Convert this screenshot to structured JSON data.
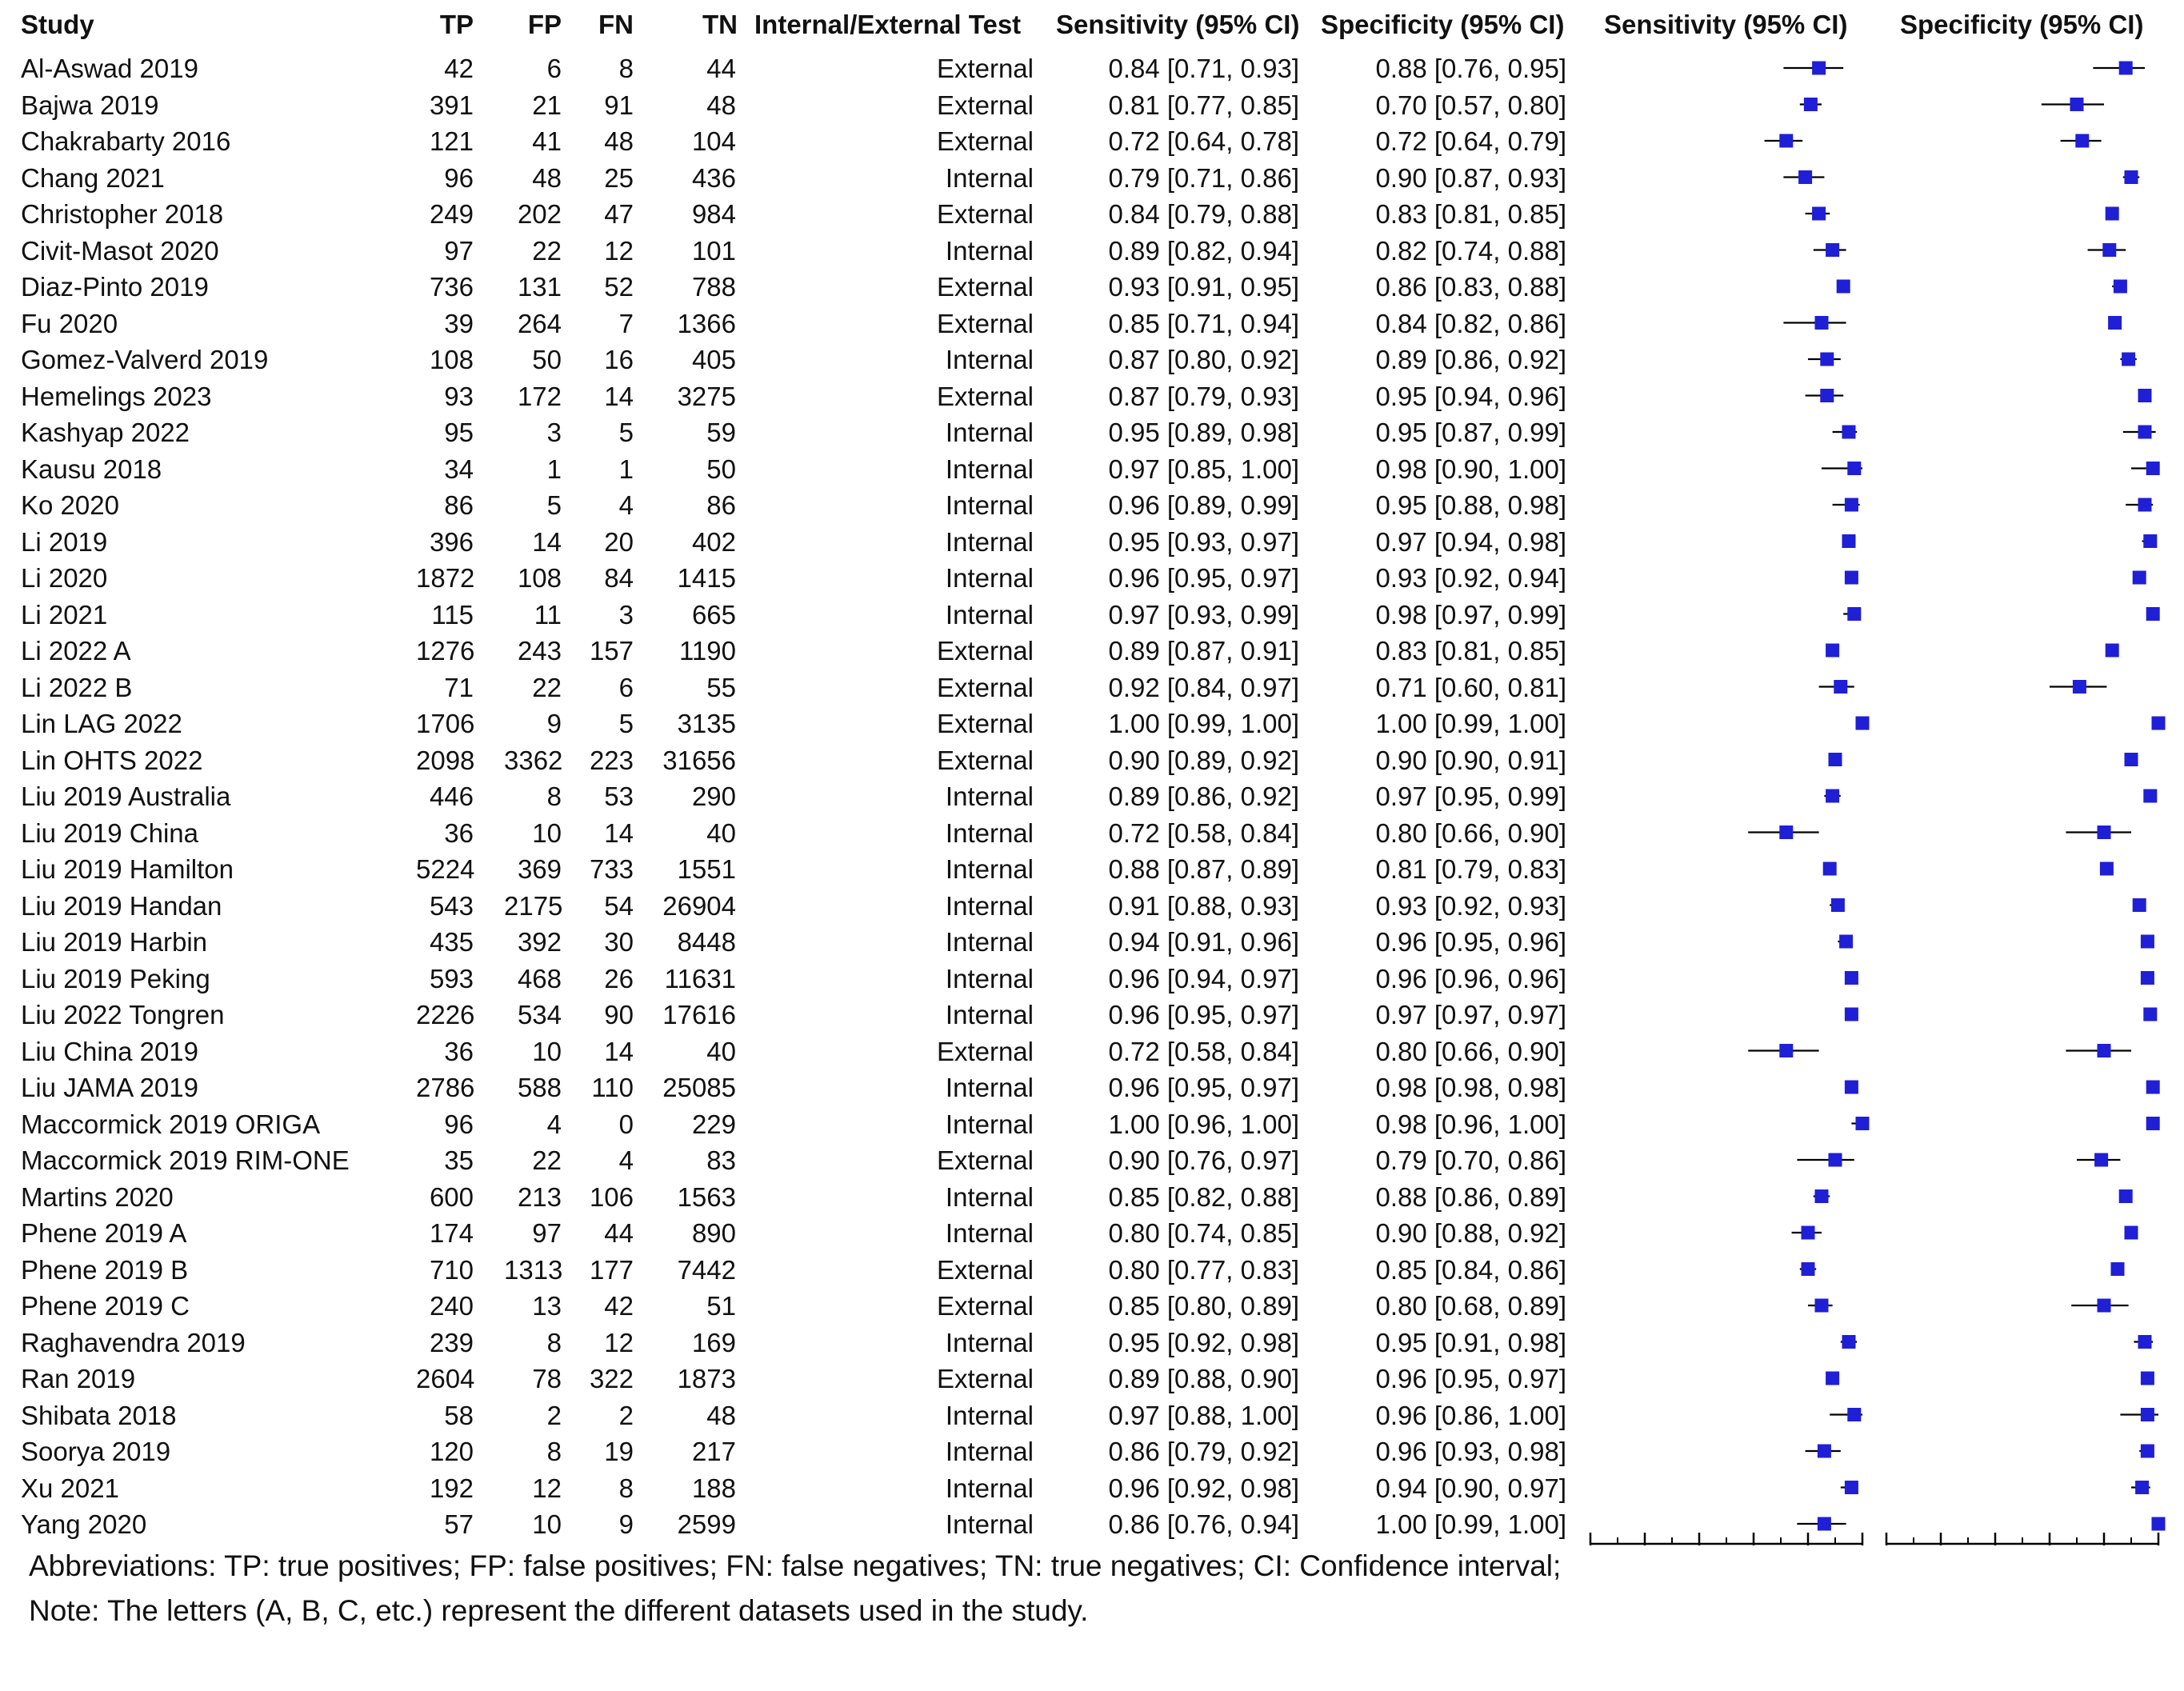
{
  "columns": {
    "study": "Study",
    "tp": "TP",
    "fp": "FP",
    "fn": "FN",
    "tn": "TN",
    "test": "Internal/External Test",
    "sens": "Sensitivity (95% CI)",
    "spec": "Specificity (95% CI)",
    "plot_sens": "Sensitivity (95% CI)",
    "plot_spec": "Specificity (95% CI)"
  },
  "rows": [
    {
      "study": "Al-Aswad 2019",
      "tp": "42",
      "fp": "6",
      "fn": "8",
      "tn": "44",
      "test": "External",
      "sens": "0.84 [0.71, 0.93]",
      "spec": "0.88 [0.76, 0.95]"
    },
    {
      "study": "Bajwa 2019",
      "tp": "391",
      "fp": "21",
      "fn": "91",
      "tn": "48",
      "test": "External",
      "sens": "0.81 [0.77, 0.85]",
      "spec": "0.70 [0.57, 0.80]"
    },
    {
      "study": "Chakrabarty 2016",
      "tp": "121",
      "fp": "41",
      "fn": "48",
      "tn": "104",
      "test": "External",
      "sens": "0.72 [0.64, 0.78]",
      "spec": "0.72 [0.64, 0.79]"
    },
    {
      "study": "Chang 2021",
      "tp": "96",
      "fp": "48",
      "fn": "25",
      "tn": "436",
      "test": "Internal",
      "sens": "0.79 [0.71, 0.86]",
      "spec": "0.90 [0.87, 0.93]"
    },
    {
      "study": "Christopher 2018",
      "tp": "249",
      "fp": "202",
      "fn": "47",
      "tn": "984",
      "test": "External",
      "sens": "0.84 [0.79, 0.88]",
      "spec": "0.83 [0.81, 0.85]"
    },
    {
      "study": "Civit-Masot 2020",
      "tp": "97",
      "fp": "22",
      "fn": "12",
      "tn": "101",
      "test": "Internal",
      "sens": "0.89 [0.82, 0.94]",
      "spec": "0.82 [0.74, 0.88]"
    },
    {
      "study": "Diaz-Pinto 2019",
      "tp": "736",
      "fp": "131",
      "fn": "52",
      "tn": "788",
      "test": "External",
      "sens": "0.93 [0.91, 0.95]",
      "spec": "0.86 [0.83, 0.88]"
    },
    {
      "study": "Fu 2020",
      "tp": "39",
      "fp": "264",
      "fn": "7",
      "tn": "1366",
      "test": "External",
      "sens": "0.85 [0.71, 0.94]",
      "spec": "0.84 [0.82, 0.86]"
    },
    {
      "study": "Gomez-Valverd 2019",
      "tp": "108",
      "fp": "50",
      "fn": "16",
      "tn": "405",
      "test": "Internal",
      "sens": "0.87 [0.80, 0.92]",
      "spec": "0.89 [0.86, 0.92]"
    },
    {
      "study": "Hemelings 2023",
      "tp": "93",
      "fp": "172",
      "fn": "14",
      "tn": "3275",
      "test": "External",
      "sens": "0.87 [0.79, 0.93]",
      "spec": "0.95 [0.94, 0.96]"
    },
    {
      "study": "Kashyap 2022",
      "tp": "95",
      "fp": "3",
      "fn": "5",
      "tn": "59",
      "test": "Internal",
      "sens": "0.95 [0.89, 0.98]",
      "spec": "0.95 [0.87, 0.99]"
    },
    {
      "study": "Kausu 2018",
      "tp": "34",
      "fp": "1",
      "fn": "1",
      "tn": "50",
      "test": "Internal",
      "sens": "0.97 [0.85, 1.00]",
      "spec": "0.98 [0.90, 1.00]"
    },
    {
      "study": "Ko 2020",
      "tp": "86",
      "fp": "5",
      "fn": "4",
      "tn": "86",
      "test": "Internal",
      "sens": "0.96 [0.89, 0.99]",
      "spec": "0.95 [0.88, 0.98]"
    },
    {
      "study": "Li 2019",
      "tp": "396",
      "fp": "14",
      "fn": "20",
      "tn": "402",
      "test": "Internal",
      "sens": "0.95 [0.93, 0.97]",
      "spec": "0.97 [0.94, 0.98]"
    },
    {
      "study": "Li 2020",
      "tp": "1872",
      "fp": "108",
      "fn": "84",
      "tn": "1415",
      "test": "Internal",
      "sens": "0.96 [0.95, 0.97]",
      "spec": "0.93 [0.92, 0.94]"
    },
    {
      "study": "Li 2021",
      "tp": "115",
      "fp": "11",
      "fn": "3",
      "tn": "665",
      "test": "Internal",
      "sens": "0.97 [0.93, 0.99]",
      "spec": "0.98 [0.97, 0.99]"
    },
    {
      "study": "Li 2022 A",
      "tp": "1276",
      "fp": "243",
      "fn": "157",
      "tn": "1190",
      "test": "External",
      "sens": "0.89 [0.87, 0.91]",
      "spec": "0.83 [0.81, 0.85]"
    },
    {
      "study": "Li 2022 B",
      "tp": "71",
      "fp": "22",
      "fn": "6",
      "tn": "55",
      "test": "External",
      "sens": "0.92 [0.84, 0.97]",
      "spec": "0.71 [0.60, 0.81]"
    },
    {
      "study": "Lin LAG 2022",
      "tp": "1706",
      "fp": "9",
      "fn": "5",
      "tn": "3135",
      "test": "External",
      "sens": "1.00 [0.99, 1.00]",
      "spec": "1.00 [0.99, 1.00]"
    },
    {
      "study": "Lin OHTS  2022",
      "tp": "2098",
      "fp": "3362",
      "fn": "223",
      "tn": "31656",
      "test": "External",
      "sens": "0.90 [0.89, 0.92]",
      "spec": "0.90 [0.90, 0.91]"
    },
    {
      "study": "Liu 2019 Australia",
      "tp": "446",
      "fp": "8",
      "fn": "53",
      "tn": "290",
      "test": "Internal",
      "sens": "0.89 [0.86, 0.92]",
      "spec": "0.97 [0.95, 0.99]"
    },
    {
      "study": "Liu 2019 China",
      "tp": "36",
      "fp": "10",
      "fn": "14",
      "tn": "40",
      "test": "Internal",
      "sens": "0.72 [0.58, 0.84]",
      "spec": "0.80 [0.66, 0.90]"
    },
    {
      "study": "Liu 2019 Hamilton",
      "tp": "5224",
      "fp": "369",
      "fn": "733",
      "tn": "1551",
      "test": "Internal",
      "sens": "0.88 [0.87, 0.89]",
      "spec": "0.81 [0.79, 0.83]"
    },
    {
      "study": "Liu 2019 Handan",
      "tp": "543",
      "fp": "2175",
      "fn": "54",
      "tn": "26904",
      "test": "Internal",
      "sens": "0.91 [0.88, 0.93]",
      "spec": "0.93 [0.92, 0.93]"
    },
    {
      "study": "Liu 2019 Harbin",
      "tp": "435",
      "fp": "392",
      "fn": "30",
      "tn": "8448",
      "test": "Internal",
      "sens": "0.94 [0.91, 0.96]",
      "spec": "0.96 [0.95, 0.96]"
    },
    {
      "study": "Liu 2019 Peking",
      "tp": "593",
      "fp": "468",
      "fn": "26",
      "tn": "11631",
      "test": "Internal",
      "sens": "0.96 [0.94, 0.97]",
      "spec": "0.96 [0.96, 0.96]"
    },
    {
      "study": "Liu 2022 Tongren",
      "tp": "2226",
      "fp": "534",
      "fn": "90",
      "tn": "17616",
      "test": "Internal",
      "sens": "0.96 [0.95, 0.97]",
      "spec": "0.97 [0.97, 0.97]"
    },
    {
      "study": "Liu China 2019",
      "tp": "36",
      "fp": "10",
      "fn": "14",
      "tn": "40",
      "test": "External",
      "sens": "0.72 [0.58, 0.84]",
      "spec": "0.80 [0.66, 0.90]"
    },
    {
      "study": "Liu JAMA 2019",
      "tp": "2786",
      "fp": "588",
      "fn": "110",
      "tn": "25085",
      "test": "Internal",
      "sens": "0.96 [0.95, 0.97]",
      "spec": "0.98 [0.98, 0.98]"
    },
    {
      "study": "Maccormick 2019 ORIGA",
      "tp": "96",
      "fp": "4",
      "fn": "0",
      "tn": "229",
      "test": "Internal",
      "sens": "1.00 [0.96, 1.00]",
      "spec": "0.98 [0.96, 1.00]"
    },
    {
      "study": "Maccormick 2019 RIM-ONE",
      "tp": "35",
      "fp": "22",
      "fn": "4",
      "tn": "83",
      "test": "External",
      "sens": "0.90 [0.76, 0.97]",
      "spec": "0.79 [0.70, 0.86]"
    },
    {
      "study": "Martins 2020",
      "tp": "600",
      "fp": "213",
      "fn": "106",
      "tn": "1563",
      "test": "Internal",
      "sens": "0.85 [0.82, 0.88]",
      "spec": "0.88 [0.86, 0.89]"
    },
    {
      "study": "Phene 2019 A",
      "tp": "174",
      "fp": "97",
      "fn": "44",
      "tn": "890",
      "test": "Internal",
      "sens": "0.80 [0.74, 0.85]",
      "spec": "0.90 [0.88, 0.92]"
    },
    {
      "study": "Phene 2019 B",
      "tp": "710",
      "fp": "1313",
      "fn": "177",
      "tn": "7442",
      "test": "External",
      "sens": "0.80 [0.77, 0.83]",
      "spec": "0.85 [0.84, 0.86]"
    },
    {
      "study": "Phene 2019 C",
      "tp": "240",
      "fp": "13",
      "fn": "42",
      "tn": "51",
      "test": "External",
      "sens": "0.85 [0.80, 0.89]",
      "spec": "0.80 [0.68, 0.89]"
    },
    {
      "study": "Raghavendra 2019",
      "tp": "239",
      "fp": "8",
      "fn": "12",
      "tn": "169",
      "test": "Internal",
      "sens": "0.95 [0.92, 0.98]",
      "spec": "0.95 [0.91, 0.98]"
    },
    {
      "study": "Ran 2019",
      "tp": "2604",
      "fp": "78",
      "fn": "322",
      "tn": "1873",
      "test": "External",
      "sens": "0.89 [0.88, 0.90]",
      "spec": "0.96 [0.95, 0.97]"
    },
    {
      "study": "Shibata 2018",
      "tp": "58",
      "fp": "2",
      "fn": "2",
      "tn": "48",
      "test": "Internal",
      "sens": "0.97 [0.88, 1.00]",
      "spec": "0.96 [0.86, 1.00]"
    },
    {
      "study": "Soorya 2019",
      "tp": "120",
      "fp": "8",
      "fn": "19",
      "tn": "217",
      "test": "Internal",
      "sens": "0.86 [0.79, 0.92]",
      "spec": "0.96 [0.93, 0.98]"
    },
    {
      "study": "Xu 2021",
      "tp": "192",
      "fp": "12",
      "fn": "8",
      "tn": "188",
      "test": "Internal",
      "sens": "0.96 [0.92, 0.98]",
      "spec": "0.94 [0.90, 0.97]"
    },
    {
      "study": "Yang 2020",
      "tp": "57",
      "fp": "10",
      "fn": "9",
      "tn": "2599",
      "test": "Internal",
      "sens": "0.86 [0.76, 0.94]",
      "spec": "1.00 [0.99, 1.00]"
    }
  ],
  "chart_data": [
    {
      "type": "forest",
      "title": "Sensitivity (95% CI)",
      "xlim": [
        0,
        1
      ],
      "ticks": [
        "0",
        "0.2",
        "0.4",
        "0.6",
        "0.8",
        "1"
      ],
      "estimates": [
        0.84,
        0.81,
        0.72,
        0.79,
        0.84,
        0.89,
        0.93,
        0.85,
        0.87,
        0.87,
        0.95,
        0.97,
        0.96,
        0.95,
        0.96,
        0.97,
        0.89,
        0.92,
        1.0,
        0.9,
        0.89,
        0.72,
        0.88,
        0.91,
        0.94,
        0.96,
        0.96,
        0.72,
        0.96,
        1.0,
        0.9,
        0.85,
        0.8,
        0.8,
        0.85,
        0.95,
        0.89,
        0.97,
        0.86,
        0.96,
        0.86
      ],
      "lower": [
        0.71,
        0.77,
        0.64,
        0.71,
        0.79,
        0.82,
        0.91,
        0.71,
        0.8,
        0.79,
        0.89,
        0.85,
        0.89,
        0.93,
        0.95,
        0.93,
        0.87,
        0.84,
        0.99,
        0.89,
        0.86,
        0.58,
        0.87,
        0.88,
        0.91,
        0.94,
        0.95,
        0.58,
        0.95,
        0.96,
        0.76,
        0.82,
        0.74,
        0.77,
        0.8,
        0.92,
        0.88,
        0.88,
        0.79,
        0.92,
        0.76
      ],
      "upper": [
        0.93,
        0.85,
        0.78,
        0.86,
        0.88,
        0.94,
        0.95,
        0.94,
        0.92,
        0.93,
        0.98,
        1.0,
        0.99,
        0.97,
        0.97,
        0.99,
        0.91,
        0.97,
        1.0,
        0.92,
        0.92,
        0.84,
        0.89,
        0.93,
        0.96,
        0.97,
        0.97,
        0.84,
        0.97,
        1.0,
        0.97,
        0.88,
        0.85,
        0.83,
        0.89,
        0.98,
        0.9,
        1.0,
        0.92,
        0.98,
        0.94
      ]
    },
    {
      "type": "forest",
      "title": "Specificity (95% CI)",
      "xlim": [
        0,
        1
      ],
      "ticks": [
        "0",
        "0.2",
        "0.4",
        "0.6",
        "0.8",
        "1"
      ],
      "estimates": [
        0.88,
        0.7,
        0.72,
        0.9,
        0.83,
        0.82,
        0.86,
        0.84,
        0.89,
        0.95,
        0.95,
        0.98,
        0.95,
        0.97,
        0.93,
        0.98,
        0.83,
        0.71,
        1.0,
        0.9,
        0.97,
        0.8,
        0.81,
        0.93,
        0.96,
        0.96,
        0.97,
        0.8,
        0.98,
        0.98,
        0.79,
        0.88,
        0.9,
        0.85,
        0.8,
        0.95,
        0.96,
        0.96,
        0.96,
        0.94,
        1.0
      ],
      "lower": [
        0.76,
        0.57,
        0.64,
        0.87,
        0.81,
        0.74,
        0.83,
        0.82,
        0.86,
        0.94,
        0.87,
        0.9,
        0.88,
        0.94,
        0.92,
        0.97,
        0.81,
        0.6,
        0.99,
        0.9,
        0.95,
        0.66,
        0.79,
        0.92,
        0.95,
        0.96,
        0.97,
        0.66,
        0.98,
        0.96,
        0.7,
        0.86,
        0.88,
        0.84,
        0.68,
        0.91,
        0.95,
        0.86,
        0.93,
        0.9,
        0.99
      ],
      "upper": [
        0.95,
        0.8,
        0.79,
        0.93,
        0.85,
        0.88,
        0.88,
        0.86,
        0.92,
        0.96,
        0.99,
        1.0,
        0.98,
        0.98,
        0.94,
        0.99,
        0.85,
        0.81,
        1.0,
        0.91,
        0.99,
        0.9,
        0.83,
        0.93,
        0.96,
        0.96,
        0.97,
        0.9,
        0.98,
        1.0,
        0.86,
        0.89,
        0.92,
        0.86,
        0.89,
        0.98,
        0.97,
        1.0,
        0.98,
        0.97,
        1.0
      ]
    }
  ],
  "footnotes": [
    "Abbreviations: TP: true positives; FP: false positives; FN: false negatives; TN: true negatives; CI: Confidence interval;",
    "Note: The letters (A, B, C, etc.) represent the different datasets used in the study."
  ]
}
